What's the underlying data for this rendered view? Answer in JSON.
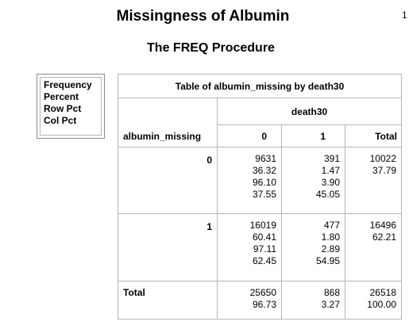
{
  "title": "Missingness of Albumin",
  "subtitle": "The FREQ Procedure",
  "corner_mark": "1",
  "legend": [
    "Frequency",
    "Percent",
    "Row Pct",
    "Col Pct"
  ],
  "table": {
    "caption": "Table of albumin_missing by death30",
    "col_var": "death30",
    "row_var": "albumin_missing",
    "col_headers": [
      "0",
      "1",
      "Total"
    ],
    "rows": [
      {
        "label": "0",
        "cells": [
          [
            "9631",
            "36.32",
            "96.10",
            "37.55"
          ],
          [
            "391",
            "1.47",
            "3.90",
            "45.05"
          ],
          [
            "10022",
            "37.79"
          ]
        ]
      },
      {
        "label": "1",
        "cells": [
          [
            "16019",
            "60.41",
            "97.11",
            "62.45"
          ],
          [
            "477",
            "1.80",
            "2.89",
            "54.95"
          ],
          [
            "16496",
            "62.21"
          ]
        ]
      }
    ],
    "total_row": {
      "label": "Total",
      "cells": [
        [
          "25650",
          "96.73"
        ],
        [
          "868",
          "3.27"
        ],
        [
          "26518",
          "100.00"
        ]
      ]
    }
  }
}
